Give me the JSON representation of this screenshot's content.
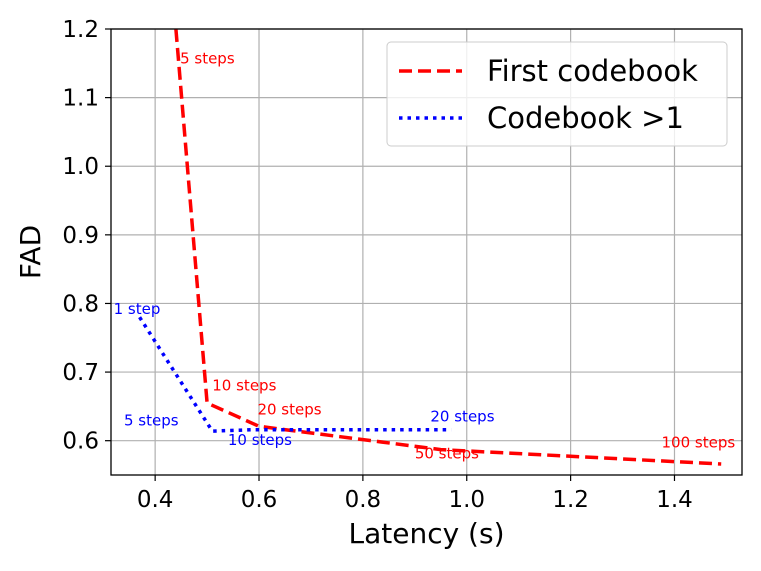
{
  "chart_data": {
    "type": "line",
    "xlabel": "Latency (s)",
    "ylabel": "FAD",
    "xlim": [
      0.315,
      1.53
    ],
    "ylim": [
      0.55,
      1.2
    ],
    "xticks": [
      0.4,
      0.6,
      0.8,
      1.0,
      1.2,
      1.4
    ],
    "xtick_labels": [
      "0.4",
      "0.6",
      "0.8",
      "1.0",
      "1.2",
      "1.4"
    ],
    "yticks": [
      0.6,
      0.7,
      0.8,
      0.9,
      1.0,
      1.1,
      1.2
    ],
    "ytick_labels": [
      "0.6",
      "0.7",
      "0.8",
      "0.9",
      "1.0",
      "1.1",
      "1.2"
    ],
    "grid": true,
    "legend_position": "top-right",
    "series": [
      {
        "name": "First codebook",
        "color": "#ff0000",
        "style": "dashed",
        "points": [
          {
            "x": 0.44,
            "y": 1.2
          },
          {
            "x": 0.5,
            "y": 0.655,
            "label": "10 steps"
          },
          {
            "x": 0.6,
            "y": 0.621,
            "label": "20 steps"
          },
          {
            "x": 0.95,
            "y": 0.587,
            "label": "50 steps"
          },
          {
            "x": 1.49,
            "y": 0.566,
            "label": "100 steps"
          }
        ]
      },
      {
        "name": "Codebook >1",
        "color": "#0000ff",
        "style": "dotted",
        "points": [
          {
            "x": 0.37,
            "y": 0.78,
            "label": "1 step"
          },
          {
            "x": 0.51,
            "y": 0.614,
            "label": "5 steps"
          },
          {
            "x": 0.59,
            "y": 0.616,
            "label": "10 steps"
          },
          {
            "x": 0.97,
            "y": 0.616,
            "label": "20 steps"
          }
        ]
      }
    ],
    "annotations": [
      {
        "text": "5 steps",
        "x": 0.448,
        "y": 1.15,
        "color": "#ff0000"
      },
      {
        "text": "10 steps",
        "x": 0.51,
        "y": 0.673,
        "color": "#ff0000"
      },
      {
        "text": "20 steps",
        "x": 0.597,
        "y": 0.638,
        "color": "#ff0000"
      },
      {
        "text": "50 steps",
        "x": 0.9,
        "y": 0.574,
        "color": "#ff0000"
      },
      {
        "text": "100 steps",
        "x": 1.375,
        "y": 0.59,
        "color": "#ff0000"
      },
      {
        "text": "1 step",
        "x": 0.32,
        "y": 0.785,
        "color": "#0000ff"
      },
      {
        "text": "5 steps",
        "x": 0.34,
        "y": 0.622,
        "color": "#0000ff"
      },
      {
        "text": "10 steps",
        "x": 0.54,
        "y": 0.594,
        "color": "#0000ff"
      },
      {
        "text": "20 steps",
        "x": 0.93,
        "y": 0.628,
        "color": "#0000ff"
      }
    ]
  }
}
